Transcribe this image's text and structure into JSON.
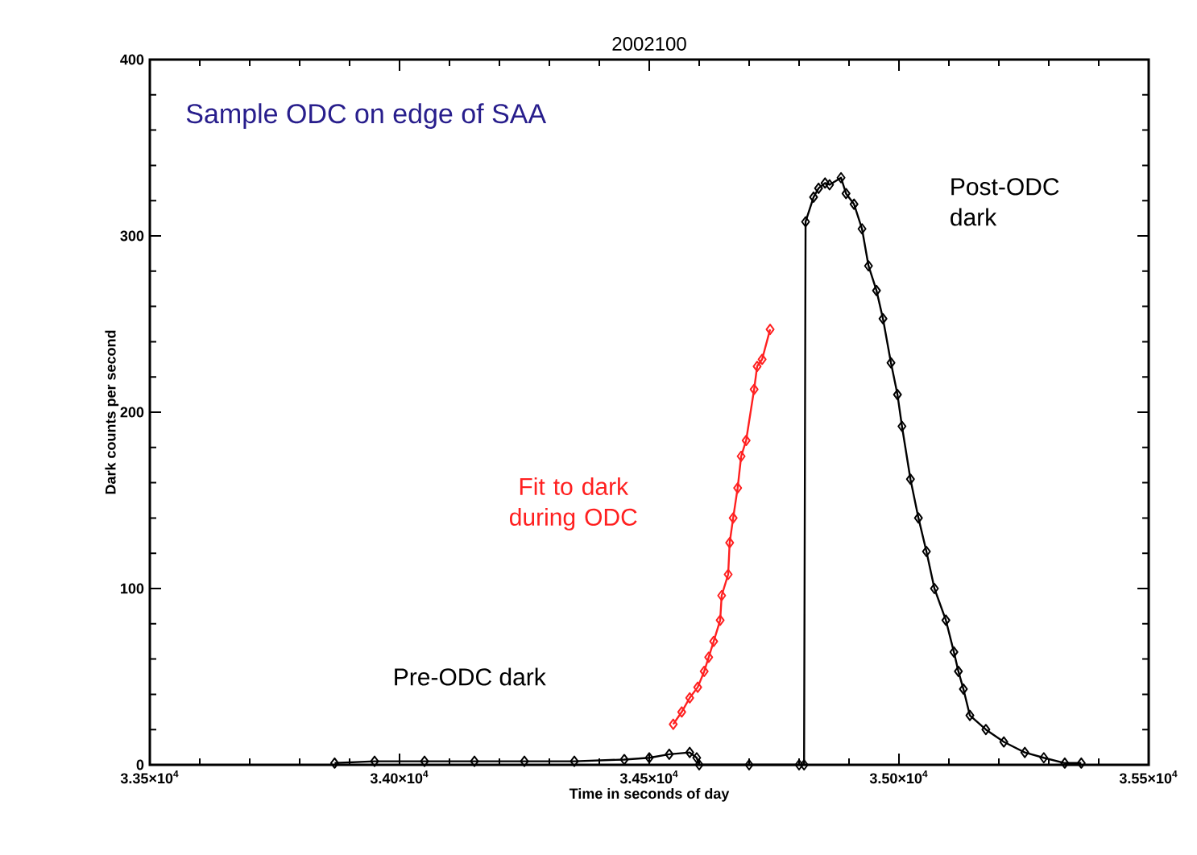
{
  "chart_data": {
    "type": "line",
    "title": "2002100",
    "xlabel": "Time in seconds of day",
    "ylabel": "Dark counts per second",
    "xlim": [
      33500,
      35500
    ],
    "ylim": [
      0,
      400
    ],
    "xticks": [
      {
        "value": 33500,
        "label": "3.35×10$^{4}$"
      },
      {
        "value": 34000,
        "label": "3.40×10$^{4}$"
      },
      {
        "value": 34500,
        "label": "3.45×10$^{4}$"
      },
      {
        "value": 35000,
        "label": "3.50×10$^{4}$"
      },
      {
        "value": 35500,
        "label": "3.55×10$^{4}$"
      }
    ],
    "yticks": [
      0,
      100,
      200,
      300,
      400
    ],
    "grid": false,
    "marker": "diamond",
    "line_style": "solid",
    "series": [
      {
        "color": "#000000",
        "x": [
          33870,
          33950,
          34050,
          34150,
          34250,
          34350,
          34450,
          34500,
          34540,
          34581,
          34595,
          34600,
          34700,
          34800,
          34810,
          34813,
          34829,
          34839,
          34852,
          34861,
          34884,
          34894,
          34910,
          34926,
          34939,
          34955,
          34968,
          34984,
          34997,
          35006,
          35023,
          35039,
          35055,
          35071,
          35094,
          35110,
          35119,
          35129,
          35142,
          35174,
          35210,
          35252,
          35290,
          35332,
          35365
        ],
        "values": [
          1,
          2,
          2,
          2,
          2,
          2,
          3,
          4,
          6,
          7,
          4,
          0,
          0,
          0,
          0,
          308,
          322,
          327,
          330,
          329,
          333,
          324,
          318,
          304,
          283,
          269,
          253,
          228,
          210,
          192,
          162,
          140,
          121,
          100,
          82,
          64,
          53,
          43,
          28,
          20,
          13,
          7,
          4,
          1,
          1
        ]
      },
      {
        "name": "Fit to dark during ODC",
        "color": "#ff2020",
        "x": [
          34548,
          34565,
          34581,
          34597,
          34610,
          34619,
          34629,
          34642,
          34645,
          34658,
          34661,
          34668,
          34677,
          34684,
          34694,
          34710,
          34716,
          34726,
          34742
        ],
        "values": [
          23,
          30,
          38,
          44,
          53,
          61,
          70,
          82,
          96,
          108,
          126,
          140,
          157,
          175,
          184,
          213,
          226,
          230,
          247
        ]
      }
    ],
    "annotations": [
      "Sample ODC on edge of SAA",
      "Pre-ODC dark",
      "Post-ODC dark"
    ]
  }
}
